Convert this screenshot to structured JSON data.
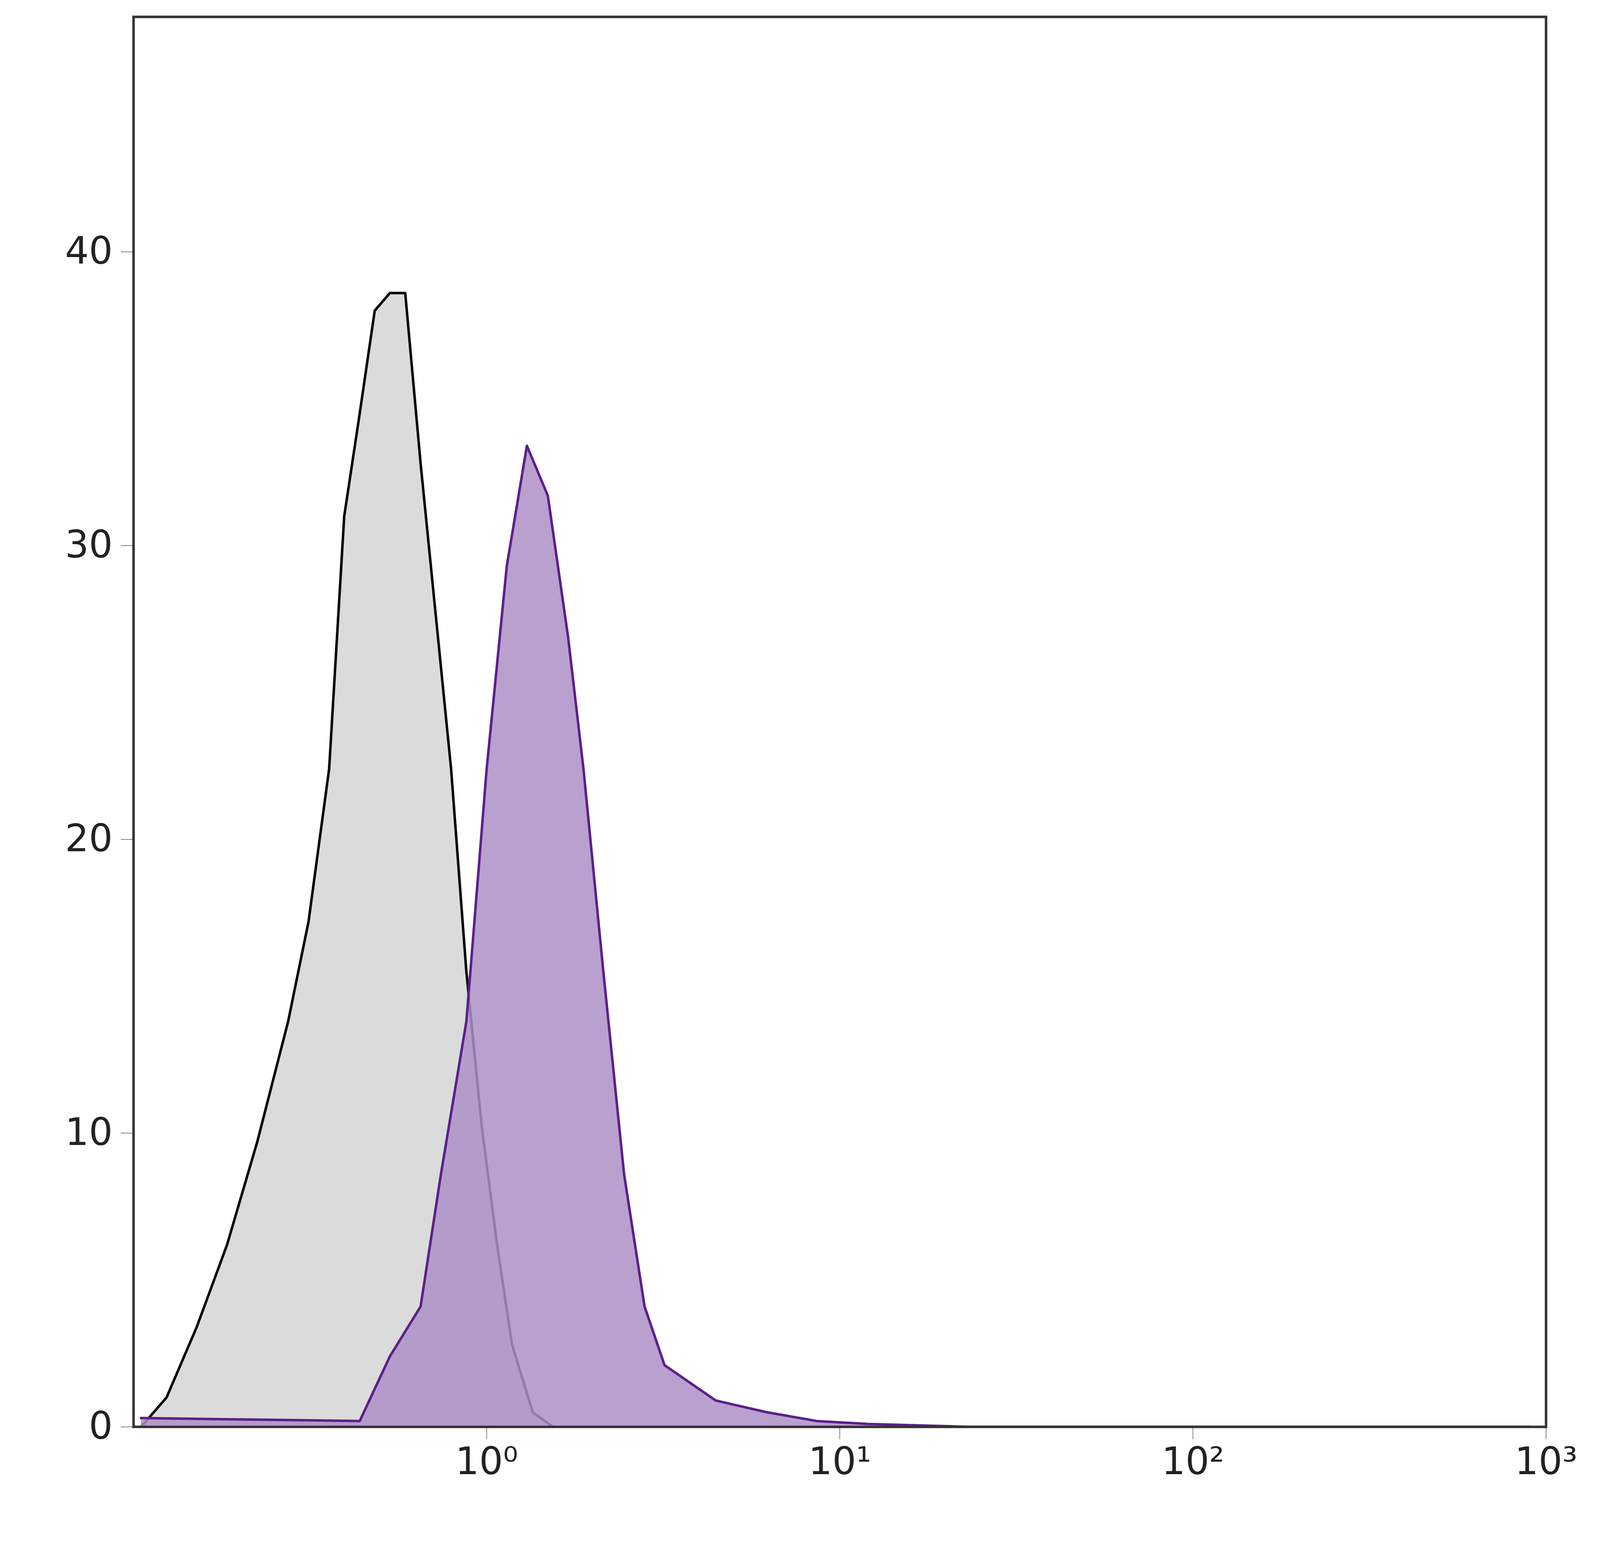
{
  "chart_data": {
    "type": "area",
    "log": "x",
    "xlim": [
      0.1,
      1000
    ],
    "xticks": [
      {
        "value": 1,
        "label": "10⁰"
      },
      {
        "value": 10,
        "label": "10¹"
      },
      {
        "value": 100,
        "label": "10²"
      },
      {
        "value": 1000,
        "label": "10³"
      }
    ],
    "ylim": [
      0,
      48
    ],
    "yticks": [
      0,
      10,
      20,
      30,
      40
    ],
    "grid": false,
    "series": [
      {
        "color": "#000000",
        "x": [
          0.105,
          0.124,
          0.151,
          0.184,
          0.224,
          0.274,
          0.313,
          0.358,
          0.395,
          0.437,
          0.482,
          0.532,
          0.588,
          0.65,
          0.718,
          0.793,
          0.876,
          0.967,
          1.07,
          1.18,
          1.35,
          1.54
        ],
        "values": [
          0,
          1,
          3.4,
          6.2,
          9.7,
          13.8,
          17.2,
          22.4,
          31,
          34.5,
          38,
          38.6,
          38.6,
          32.8,
          27.6,
          22.4,
          15.5,
          10.3,
          6.2,
          2.8,
          0.5,
          0
        ]
      },
      {
        "color": "#5b1f8a",
        "x": [
          0.105,
          0.437,
          0.532,
          0.65,
          0.742,
          0.876,
          1,
          1.14,
          1.3,
          1.49,
          1.7,
          1.88,
          2.14,
          2.45,
          2.8,
          3.19,
          4.45,
          6.2,
          8.6,
          12,
          23.4,
          900
        ],
        "values": [
          0.3,
          0.2,
          2.4,
          4.1,
          8.6,
          13.8,
          22.4,
          29.3,
          33.4,
          31.7,
          26.9,
          22.4,
          15.5,
          8.6,
          4.1,
          2.1,
          0.9,
          0.5,
          0.2,
          0.1,
          0,
          0
        ]
      }
    ]
  }
}
